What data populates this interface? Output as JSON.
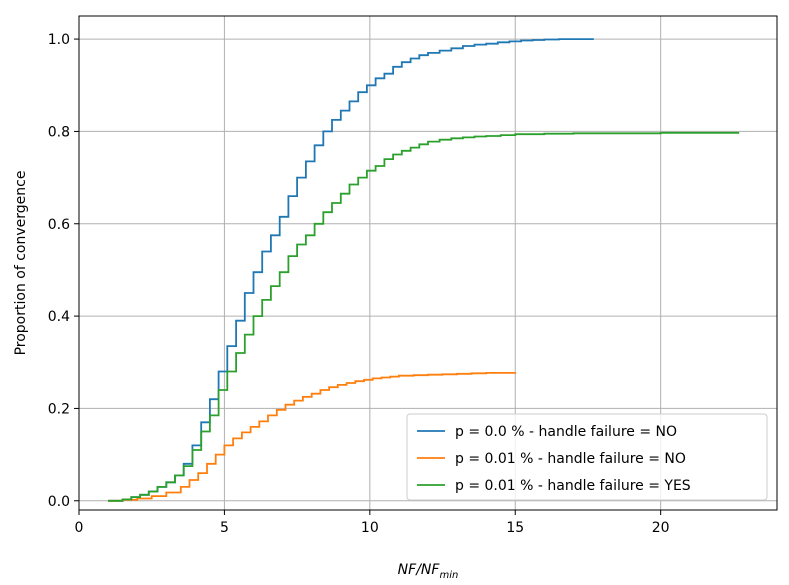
{
  "chart_data": {
    "type": "line",
    "xlabel": "NF/NF",
    "xlabel_subscript": "min",
    "ylabel": "Proportion of convergence",
    "xlim": [
      0,
      24
    ],
    "ylim": [
      -0.02,
      1.05
    ],
    "xticks": [
      0,
      5,
      10,
      15,
      20
    ],
    "yticks": [
      0.0,
      0.2,
      0.4,
      0.6,
      0.8,
      1.0
    ],
    "xtick_labels": [
      "0",
      "5",
      "10",
      "15",
      "20"
    ],
    "ytick_labels": [
      "0.0",
      "0.2",
      "0.4",
      "0.6",
      "0.8",
      "1.0"
    ],
    "grid": true,
    "legend_position": "lower-right",
    "step": true,
    "series": [
      {
        "name": "p = 0.0 % - handle failure = NO",
        "color": "#1f77b4",
        "x": [
          1.0,
          1.5,
          1.8,
          2.1,
          2.4,
          2.7,
          3.0,
          3.3,
          3.6,
          3.9,
          4.2,
          4.5,
          4.8,
          5.1,
          5.4,
          5.7,
          6.0,
          6.3,
          6.6,
          6.9,
          7.2,
          7.5,
          7.8,
          8.1,
          8.4,
          8.7,
          9.0,
          9.3,
          9.6,
          9.9,
          10.2,
          10.5,
          10.8,
          11.1,
          11.4,
          11.7,
          12.0,
          12.4,
          12.8,
          13.2,
          13.6,
          14.0,
          14.4,
          14.8,
          15.2,
          15.6,
          16.0,
          16.5,
          17.0,
          17.7
        ],
        "y": [
          0.0,
          0.003,
          0.008,
          0.013,
          0.02,
          0.03,
          0.04,
          0.055,
          0.08,
          0.12,
          0.17,
          0.22,
          0.28,
          0.335,
          0.39,
          0.45,
          0.495,
          0.54,
          0.575,
          0.615,
          0.66,
          0.7,
          0.735,
          0.77,
          0.8,
          0.825,
          0.845,
          0.865,
          0.885,
          0.9,
          0.915,
          0.925,
          0.94,
          0.95,
          0.958,
          0.965,
          0.97,
          0.975,
          0.98,
          0.985,
          0.988,
          0.99,
          0.993,
          0.995,
          0.997,
          0.998,
          0.999,
          1.0,
          1.0,
          1.0
        ]
      },
      {
        "name": "p = 0.01 % - handle failure = NO",
        "color": "#ff7f0e",
        "x": [
          1.0,
          1.5,
          2.0,
          2.5,
          3.0,
          3.5,
          3.8,
          4.1,
          4.4,
          4.7,
          5.0,
          5.3,
          5.6,
          5.9,
          6.2,
          6.5,
          6.8,
          7.1,
          7.4,
          7.7,
          8.0,
          8.3,
          8.6,
          8.9,
          9.2,
          9.5,
          9.8,
          10.1,
          10.4,
          10.7,
          11.0,
          11.5,
          12.0,
          12.5,
          13.0,
          13.5,
          14.0,
          14.5,
          15.0
        ],
        "y": [
          0.0,
          0.002,
          0.005,
          0.01,
          0.018,
          0.03,
          0.045,
          0.06,
          0.08,
          0.1,
          0.12,
          0.135,
          0.148,
          0.16,
          0.172,
          0.185,
          0.197,
          0.208,
          0.217,
          0.225,
          0.232,
          0.24,
          0.246,
          0.251,
          0.255,
          0.259,
          0.262,
          0.265,
          0.267,
          0.269,
          0.271,
          0.272,
          0.273,
          0.274,
          0.275,
          0.276,
          0.277,
          0.277,
          0.278
        ]
      },
      {
        "name": "p = 0.01 % - handle failure = YES",
        "color": "#2ca02c",
        "x": [
          1.0,
          1.5,
          1.8,
          2.1,
          2.4,
          2.7,
          3.0,
          3.3,
          3.6,
          3.9,
          4.2,
          4.5,
          4.8,
          5.1,
          5.4,
          5.7,
          6.0,
          6.3,
          6.6,
          6.9,
          7.2,
          7.5,
          7.8,
          8.1,
          8.4,
          8.7,
          9.0,
          9.3,
          9.6,
          9.9,
          10.2,
          10.5,
          10.8,
          11.1,
          11.4,
          11.7,
          12.0,
          12.4,
          12.8,
          13.2,
          13.6,
          14.0,
          14.5,
          15.0,
          16.0,
          17.0,
          18.5,
          20.0,
          21.5,
          22.7
        ],
        "y": [
          0.0,
          0.003,
          0.008,
          0.013,
          0.02,
          0.03,
          0.04,
          0.055,
          0.075,
          0.11,
          0.15,
          0.185,
          0.24,
          0.28,
          0.32,
          0.36,
          0.4,
          0.435,
          0.465,
          0.495,
          0.53,
          0.555,
          0.575,
          0.6,
          0.625,
          0.645,
          0.665,
          0.685,
          0.7,
          0.715,
          0.725,
          0.74,
          0.75,
          0.758,
          0.765,
          0.772,
          0.778,
          0.782,
          0.785,
          0.787,
          0.789,
          0.79,
          0.792,
          0.794,
          0.795,
          0.796,
          0.796,
          0.797,
          0.797,
          0.797
        ]
      }
    ]
  }
}
